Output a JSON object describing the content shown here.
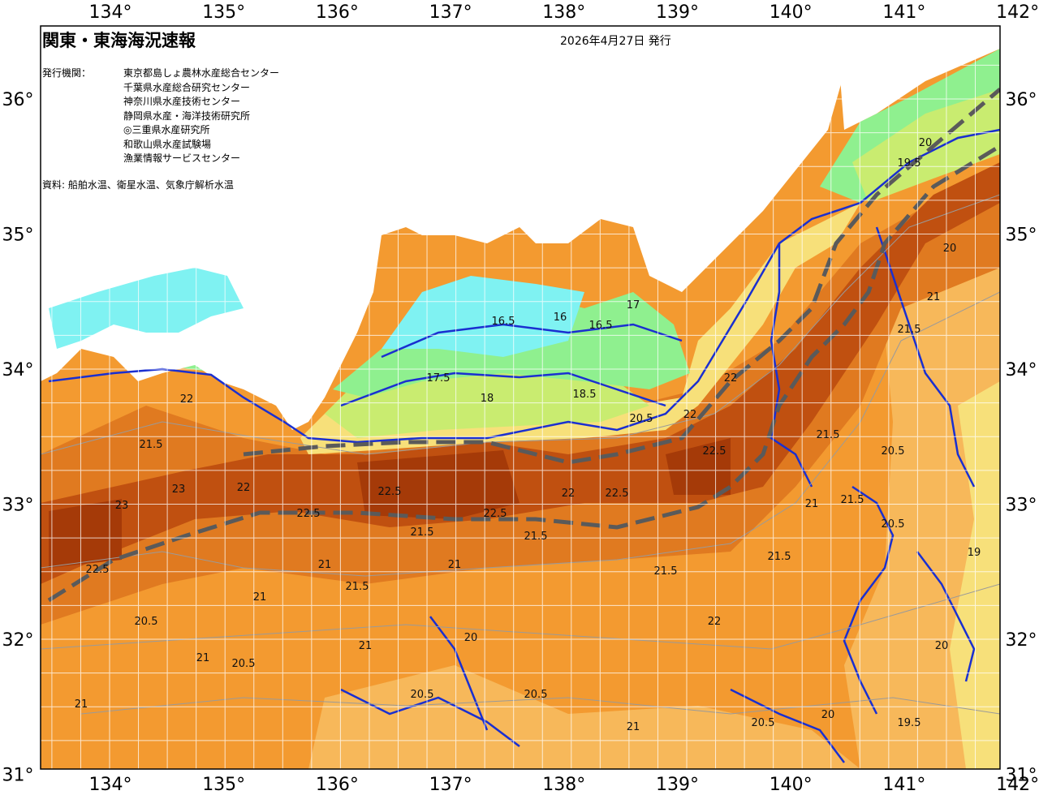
{
  "header": {
    "title": "関東・東海海況速報",
    "date": "2026年4月27日 発行"
  },
  "issuers": {
    "label": "発行機関：",
    "items": [
      "東京都島しょ農林水産総合センター",
      "千葉県水産総合研究センター",
      "神奈川県水産技術センター",
      "静岡県水産・海洋技術研究所",
      "◎三重県水産研究所",
      "和歌山県水産試験場",
      "漁業情報サービスセンター"
    ]
  },
  "source": "資料: 船舶水温、衛星水温、気象庁解析水温",
  "axes": {
    "lon_labels": [
      "134°",
      "135°",
      "136°",
      "137°",
      "138°",
      "139°",
      "140°",
      "141°",
      "142°"
    ],
    "lat_labels": [
      "36°",
      "35°",
      "34°",
      "33°",
      "32°",
      "31°"
    ]
  },
  "isotherm_labels": [
    "23",
    "22.5",
    "22",
    "21.5",
    "21",
    "20.5",
    "20",
    "19.5",
    "19",
    "18.5",
    "18",
    "17.5",
    "17",
    "16.5",
    "16"
  ],
  "colors": {
    "land": "#ffffff",
    "t16": "#7ff2f2",
    "t17": "#8ff08f",
    "t18": "#c9ec70",
    "t19": "#f7e07a",
    "t20": "#f7b85a",
    "t21": "#f39a30",
    "t22": "#e07a20",
    "t23": "#c05010",
    "t24": "#a53a08",
    "contour": "#1a2fd0",
    "kuroshio_axis": "#5a5a5a"
  }
}
